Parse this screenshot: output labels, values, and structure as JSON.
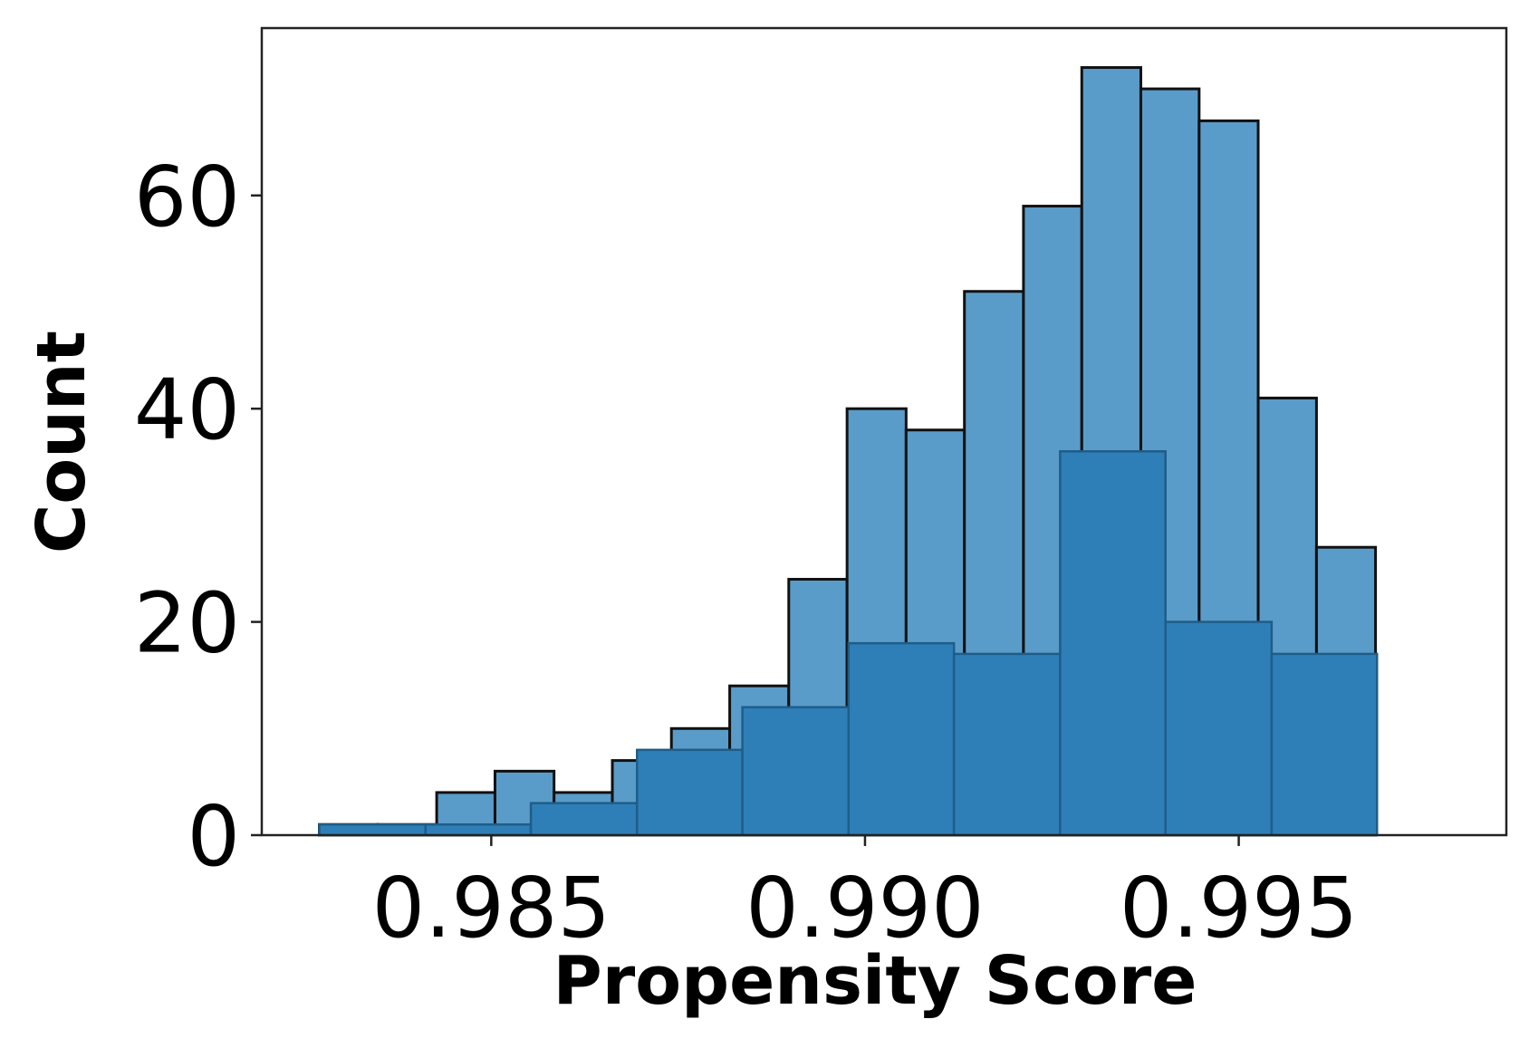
{
  "chart_data": {
    "type": "bar",
    "title": "",
    "xlabel": "Propensity Score",
    "ylabel": "Count",
    "xlim": [
      0.98193,
      0.99858
    ],
    "ylim": [
      0,
      75.7
    ],
    "xticks": [
      0.985,
      0.99,
      0.995
    ],
    "xtick_labels": [
      "0.985",
      "0.990",
      "0.995"
    ],
    "yticks": [
      0,
      20,
      40,
      60
    ],
    "ytick_labels": [
      "0",
      "20",
      "40",
      "60"
    ],
    "grid": false,
    "legend": "none",
    "series": [
      {
        "color": "#5a9cc9",
        "edge_color": "#111111",
        "bins": [
          {
            "x0": 0.9827,
            "x1": 0.98348,
            "count": 1
          },
          {
            "x0": 0.98348,
            "x1": 0.98427,
            "count": 1
          },
          {
            "x0": 0.98427,
            "x1": 0.98505,
            "count": 4
          },
          {
            "x0": 0.98505,
            "x1": 0.98584,
            "count": 6
          },
          {
            "x0": 0.98584,
            "x1": 0.98662,
            "count": 4
          },
          {
            "x0": 0.98662,
            "x1": 0.98741,
            "count": 7
          },
          {
            "x0": 0.98741,
            "x1": 0.98819,
            "count": 10
          },
          {
            "x0": 0.98819,
            "x1": 0.98898,
            "count": 14
          },
          {
            "x0": 0.98898,
            "x1": 0.98976,
            "count": 24
          },
          {
            "x0": 0.98976,
            "x1": 0.99055,
            "count": 40
          },
          {
            "x0": 0.99055,
            "x1": 0.99133,
            "count": 38
          },
          {
            "x0": 0.99133,
            "x1": 0.99212,
            "count": 51
          },
          {
            "x0": 0.99212,
            "x1": 0.9929,
            "count": 59
          },
          {
            "x0": 0.9929,
            "x1": 0.99369,
            "count": 72
          },
          {
            "x0": 0.99369,
            "x1": 0.99447,
            "count": 70
          },
          {
            "x0": 0.99447,
            "x1": 0.99526,
            "count": 67
          },
          {
            "x0": 0.99526,
            "x1": 0.99604,
            "count": 41
          },
          {
            "x0": 0.99604,
            "x1": 0.99683,
            "count": 27
          }
        ]
      },
      {
        "color": "#2e7fb8",
        "edge_color": "#1f5d88",
        "bins": [
          {
            "x0": 0.9827,
            "x1": 0.98412,
            "count": 1
          },
          {
            "x0": 0.98412,
            "x1": 0.98553,
            "count": 1
          },
          {
            "x0": 0.98553,
            "x1": 0.98695,
            "count": 3
          },
          {
            "x0": 0.98695,
            "x1": 0.98836,
            "count": 8
          },
          {
            "x0": 0.98836,
            "x1": 0.98978,
            "count": 12
          },
          {
            "x0": 0.98978,
            "x1": 0.99119,
            "count": 18
          },
          {
            "x0": 0.99119,
            "x1": 0.99261,
            "count": 17
          },
          {
            "x0": 0.99261,
            "x1": 0.99402,
            "count": 36
          },
          {
            "x0": 0.99402,
            "x1": 0.99544,
            "count": 20
          },
          {
            "x0": 0.99544,
            "x1": 0.99685,
            "count": 17
          }
        ]
      }
    ]
  }
}
